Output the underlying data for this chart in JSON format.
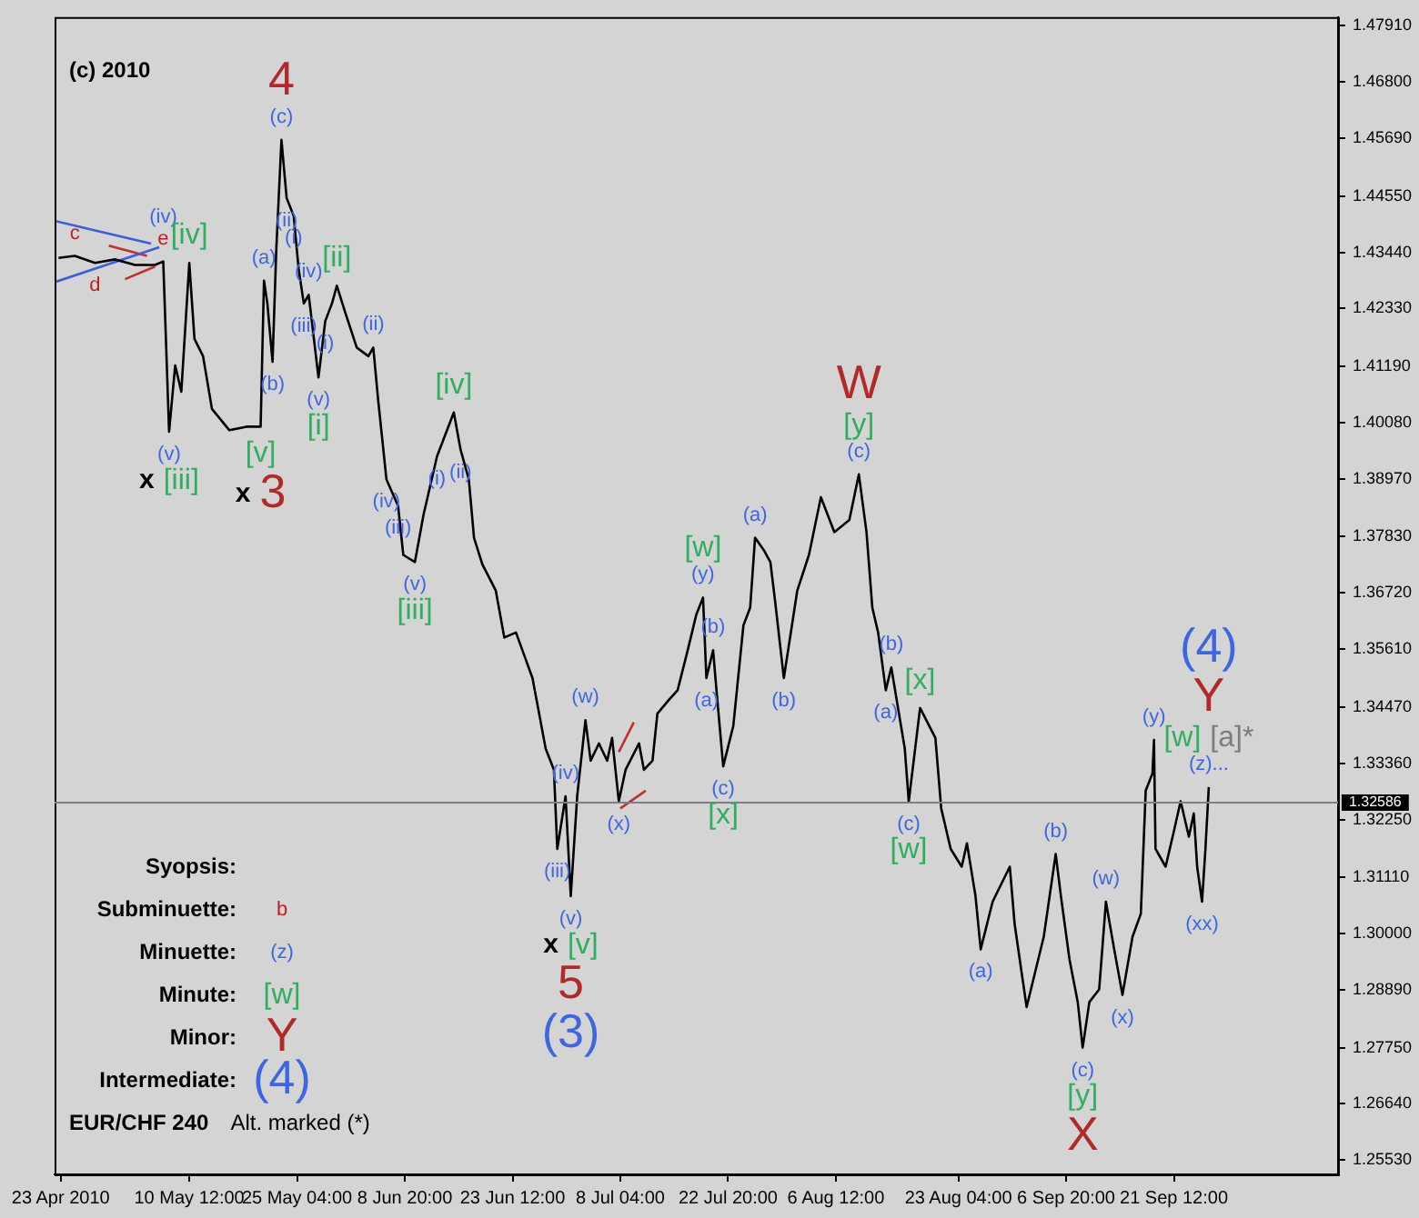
{
  "chart_data": {
    "type": "line",
    "title": "EUR/CHF 240",
    "subtitle": "(c) 2010",
    "xlim": [
      "2010-04-22T04:00",
      "2010-10-13T20:00"
    ],
    "xticks": [
      {
        "value": "2010-04-23T00:00",
        "label": "23 Apr 2010"
      },
      {
        "value": "2010-05-10T12:00",
        "label": "10 May 12:00"
      },
      {
        "value": "2010-05-25T04:00",
        "label": "25 May 04:00"
      },
      {
        "value": "2010-06-08T20:00",
        "label": "8 Jun 20:00"
      },
      {
        "value": "2010-06-23T12:00",
        "label": "23 Jun 12:00"
      },
      {
        "value": "2010-07-08T04:00",
        "label": "8 Jul 04:00"
      },
      {
        "value": "2010-07-22T20:00",
        "label": "22 Jul 20:00"
      },
      {
        "value": "2010-08-06T12:00",
        "label": "6 Aug 12:00"
      },
      {
        "value": "2010-08-23T04:00",
        "label": "23 Aug 04:00"
      },
      {
        "value": "2010-09-06T20:00",
        "label": "6 Sep 20:00"
      },
      {
        "value": "2010-09-21T12:00",
        "label": "21 Sep 12:00"
      }
    ],
    "ylim": [
      1.2525,
      1.4808
    ],
    "yticks": [
      {
        "value": 1.4791,
        "label": "1.47910"
      },
      {
        "value": 1.468,
        "label": "1.46800"
      },
      {
        "value": 1.4569,
        "label": "1.45690"
      },
      {
        "value": 1.4455,
        "label": "1.44550"
      },
      {
        "value": 1.4344,
        "label": "1.43440"
      },
      {
        "value": 1.4233,
        "label": "1.42330"
      },
      {
        "value": 1.4119,
        "label": "1.41190"
      },
      {
        "value": 1.4008,
        "label": "1.40080"
      },
      {
        "value": 1.3897,
        "label": "1.38970"
      },
      {
        "value": 1.3783,
        "label": "1.37830"
      },
      {
        "value": 1.3672,
        "label": "1.36720"
      },
      {
        "value": 1.3561,
        "label": "1.35610"
      },
      {
        "value": 1.3447,
        "label": "1.34470"
      },
      {
        "value": 1.3336,
        "label": "1.33360"
      },
      {
        "value": 1.3225,
        "label": "1.32250"
      },
      {
        "value": 1.3111,
        "label": "1.31110"
      },
      {
        "value": 1.3,
        "label": "1.30000"
      },
      {
        "value": 1.2889,
        "label": "1.28890"
      },
      {
        "value": 1.2775,
        "label": "1.27750"
      },
      {
        "value": 1.2664,
        "label": "1.26640"
      },
      {
        "value": 1.2553,
        "label": "1.25530"
      }
    ],
    "grid": false,
    "legend": false,
    "marker": "none",
    "line_style": "solid",
    "series": [
      {
        "color": "#000000",
        "x": [
          "2010-04-22T17:00",
          "2010-04-24T22:00",
          "2010-04-27T16:00",
          "2010-04-30T09:00",
          "2010-05-03T03:00",
          "2010-05-05T20:00",
          "2010-05-06T23:00",
          "2010-05-07T18:00",
          "2010-05-08T14:00",
          "2010-05-09T10:00",
          "2010-05-10T12:00",
          "2010-05-11T05:00",
          "2010-05-12T09:00",
          "2010-05-13T14:00",
          "2010-05-15T23:00",
          "2010-05-18T07:00",
          "2010-05-20T05:00",
          "2010-05-20T16:00",
          "2010-05-21T03:00",
          "2010-05-21T20:00",
          "2010-05-22T08:00",
          "2010-05-23T01:00",
          "2010-05-23T18:00",
          "2010-05-24T17:00",
          "2010-05-25T09:00",
          "2010-05-26T02:00",
          "2010-05-26T18:00",
          "2010-05-28T02:00",
          "2010-05-29T00:00",
          "2010-05-29T22:00",
          "2010-05-30T14:00",
          "2010-05-31T17:00",
          "2010-06-02T07:00",
          "2010-06-03T21:00",
          "2010-06-04T13:00",
          "2010-06-05T05:00",
          "2010-06-06T08:00",
          "2010-06-07T22:00",
          "2010-06-08T15:00",
          "2010-06-10T05:00",
          "2010-06-11T09:00",
          "2010-06-13T05:00",
          "2010-06-15T12:00",
          "2010-06-16T10:00",
          "2010-06-17T13:00",
          "2010-06-18T06:00",
          "2010-06-19T09:00",
          "2010-06-21T05:00",
          "2010-06-22T09:00",
          "2010-06-23T23:00",
          "2010-06-25T02:00",
          "2010-06-26T05:00",
          "2010-06-28T00:00",
          "2010-06-29T03:00",
          "2010-06-29T14:00",
          "2010-06-30T17:00",
          "2010-07-01T10:00",
          "2010-07-02T07:00",
          "2010-07-03T10:00",
          "2010-07-04T03:00",
          "2010-07-05T06:00",
          "2010-07-06T09:00",
          "2010-07-07T01:00",
          "2010-07-07T23:00",
          "2010-07-08T21:00",
          "2010-07-10T17:00",
          "2010-07-11T09:00",
          "2010-07-12T13:00",
          "2010-07-13T05:00",
          "2010-07-14T20:00",
          "2010-07-15T23:00",
          "2010-07-17T08:00",
          "2010-07-18T12:00",
          "2010-07-19T10:00",
          "2010-07-19T21:00",
          "2010-07-20T19:00",
          "2010-07-21T06:00",
          "2010-07-22T04:00",
          "2010-07-23T13:00",
          "2010-07-24T22:00",
          "2010-07-25T20:00",
          "2010-07-26T12:00",
          "2010-07-27T16:00",
          "2010-07-28T14:00",
          "2010-07-29T06:00",
          "2010-07-30T10:00",
          "2010-08-01T06:00",
          "2010-08-02T20:00",
          "2010-08-04T11:00",
          "2010-08-06T07:00",
          "2010-08-08T08:00",
          "2010-08-09T15:00",
          "2010-08-10T16:00",
          "2010-08-11T11:00",
          "2010-08-12T06:00",
          "2010-08-13T07:00",
          "2010-08-14T01:00",
          "2010-08-15T21:00",
          "2010-08-16T10:00",
          "2010-08-17T23:00",
          "2010-08-20T01:00",
          "2010-08-20T20:00",
          "2010-08-22T03:00",
          "2010-08-23T15:00",
          "2010-08-24T08:00",
          "2010-08-25T12:00",
          "2010-08-26T05:00",
          "2010-08-27T20:00",
          "2010-08-30T04:00",
          "2010-08-30T20:00",
          "2010-09-01T11:00",
          "2010-09-03T19:00",
          "2010-09-05T10:00",
          "2010-09-06T03:00",
          "2010-09-07T07:00",
          "2010-09-08T10:00",
          "2010-09-09T02:00",
          "2010-09-10T00:00",
          "2010-09-11T08:00",
          "2010-09-12T06:00",
          "2010-09-13T09:00",
          "2010-09-14T12:00",
          "2010-09-15T21:00",
          "2010-09-17T00:00",
          "2010-09-17T16:00",
          "2010-09-18T14:00",
          "2010-09-18T19:00",
          "2010-09-19T00:00",
          "2010-09-20T09:00",
          "2010-09-21T12:00",
          "2010-09-22T10:00",
          "2010-09-23T13:00",
          "2010-09-24T05:00",
          "2010-09-24T16:00",
          "2010-09-25T08:00",
          "2010-09-25T19:00",
          "2010-09-26T06:00"
        ],
        "values": [
          1.4333,
          1.4337,
          1.4323,
          1.433,
          1.4319,
          1.4319,
          1.4326,
          1.399,
          1.4121,
          1.4069,
          1.4323,
          1.4173,
          1.4139,
          1.4035,
          1.3993,
          1.4,
          1.4,
          1.4288,
          1.4243,
          1.4128,
          1.4347,
          1.4566,
          1.4451,
          1.4416,
          1.4312,
          1.4243,
          1.426,
          1.4097,
          1.4208,
          1.4243,
          1.4278,
          1.4226,
          1.4156,
          1.4139,
          1.4156,
          1.4052,
          1.3896,
          1.3844,
          1.3747,
          1.3733,
          1.3826,
          1.3941,
          1.4028,
          1.3955,
          1.3896,
          1.3781,
          1.3729,
          1.3677,
          1.3584,
          1.3594,
          1.3549,
          1.3504,
          1.3365,
          1.3323,
          1.3167,
          1.3271,
          1.3074,
          1.3271,
          1.3421,
          1.3341,
          1.3375,
          1.3341,
          1.3386,
          1.3261,
          1.3323,
          1.3375,
          1.3323,
          1.3341,
          1.3434,
          1.3462,
          1.348,
          1.3559,
          1.3629,
          1.3663,
          1.3504,
          1.3559,
          1.348,
          1.333,
          1.341,
          1.3608,
          1.3643,
          1.3781,
          1.3757,
          1.3733,
          1.3653,
          1.3504,
          1.3677,
          1.3747,
          1.3861,
          1.3792,
          1.3816,
          1.3906,
          1.3792,
          1.3643,
          1.3594,
          1.348,
          1.3525,
          1.3365,
          1.3261,
          1.3445,
          1.3386,
          1.3247,
          1.3167,
          1.3132,
          1.3178,
          1.3074,
          1.2969,
          1.3063,
          1.3132,
          1.3018,
          1.2855,
          1.2994,
          1.3157,
          1.3074,
          1.2949,
          1.2865,
          1.2775,
          1.2865,
          1.289,
          1.3063,
          1.2969,
          1.2879,
          1.2994,
          1.3039,
          1.3282,
          1.3316,
          1.3382,
          1.3167,
          1.3132,
          1.3202,
          1.3261,
          1.3191,
          1.3237,
          1.3132,
          1.3063,
          1.3167,
          1.3289
        ]
      },
      {
        "color": "#3a5fd9",
        "x": [
          "2010-04-22T04:00",
          "2010-05-05T07:00"
        ],
        "values": [
          1.4406,
          1.4361
        ]
      },
      {
        "color": "#3a5fd9",
        "x": [
          "2010-04-22T04:00",
          "2010-05-06T10:00"
        ],
        "values": [
          1.4285,
          1.4354
        ]
      },
      {
        "color": "#c03030",
        "x": [
          "2010-04-29T13:00",
          "2010-05-04T18:00"
        ],
        "values": [
          1.4357,
          1.4337
        ]
      },
      {
        "color": "#c03030",
        "x": [
          "2010-05-01T18:00",
          "2010-05-05T20:00"
        ],
        "values": [
          1.4291,
          1.4316
        ]
      },
      {
        "color": "#c03030",
        "x": [
          "2010-07-07T23:00",
          "2010-07-10T00:00"
        ],
        "values": [
          1.3358,
          1.3417
        ]
      },
      {
        "color": "#c03030",
        "x": [
          "2010-07-08T04:00",
          "2010-07-11T15:00"
        ],
        "values": [
          1.3247,
          1.3282
        ]
      }
    ],
    "ref_lines": [
      {
        "axis": "y",
        "value": 1.32586,
        "label": "1.32586",
        "color": "#7a8088"
      }
    ],
    "annotations": [
      {
        "text": "c",
        "x": "2010-04-24T22:00",
        "y": 1.4337
      },
      {
        "text": "d",
        "x": "2010-04-27T16:00",
        "y": 1.4323
      },
      {
        "text": "e",
        "x": "2010-05-06T23:00",
        "y": 1.4326
      },
      {
        "text": "(iv)",
        "x": "2010-05-06T23:00",
        "y": 1.4326
      },
      {
        "text": "[iv]",
        "x": "2010-05-10T12:00",
        "y": 1.4323
      },
      {
        "text": "(v)",
        "x": "2010-05-07T18:00",
        "y": 1.399
      },
      {
        "text": "x [iii]",
        "x": "2010-05-07T18:00",
        "y": 1.399
      },
      {
        "text": "[v]",
        "x": "2010-05-20T05:00",
        "y": 1.4
      },
      {
        "text": "x 3",
        "x": "2010-05-20T05:00",
        "y": 1.4
      },
      {
        "text": "(a)",
        "x": "2010-05-20T16:00",
        "y": 1.4288
      },
      {
        "text": "(b)",
        "x": "2010-05-21T20:00",
        "y": 1.4128
      },
      {
        "text": "(c)",
        "x": "2010-05-23T01:00",
        "y": 1.4566
      },
      {
        "text": "4",
        "x": "2010-05-23T01:00",
        "y": 1.4566
      },
      {
        "text": "(ii)",
        "x": "2010-05-23T18:00",
        "y": 1.4451
      },
      {
        "text": "(i)",
        "x": "2010-05-24T17:00",
        "y": 1.4416
      },
      {
        "text": "(iii)",
        "x": "2010-05-26T02:00",
        "y": 1.4243
      },
      {
        "text": "(iv)",
        "x": "2010-05-26T18:00",
        "y": 1.426
      },
      {
        "text": "[ii]",
        "x": "2010-05-30T14:00",
        "y": 1.4278
      },
      {
        "text": "(v)",
        "x": "2010-05-28T02:00",
        "y": 1.4097
      },
      {
        "text": "[i]",
        "x": "2010-05-28T02:00",
        "y": 1.4097
      },
      {
        "text": "(i)",
        "x": "2010-05-29T00:00",
        "y": 1.4208
      },
      {
        "text": "(ii)",
        "x": "2010-06-04T13:00",
        "y": 1.4156
      },
      {
        "text": "(iii)",
        "x": "2010-06-07T22:00",
        "y": 1.3844
      },
      {
        "text": "(iv)",
        "x": "2010-06-06T08:00",
        "y": 1.3896
      },
      {
        "text": "(v)",
        "x": "2010-06-10T05:00",
        "y": 1.3733
      },
      {
        "text": "[iii]",
        "x": "2010-06-10T05:00",
        "y": 1.3733
      },
      {
        "text": "(i)",
        "x": "2010-06-13T05:00",
        "y": 1.3941
      },
      {
        "text": "[iv]",
        "x": "2010-06-15T12:00",
        "y": 1.4028
      },
      {
        "text": "(ii)",
        "x": "2010-06-16T10:00",
        "y": 1.3955
      },
      {
        "text": "(iii)",
        "x": "2010-06-29T14:00",
        "y": 1.3167
      },
      {
        "text": "(iv)",
        "x": "2010-06-30T17:00",
        "y": 1.3271
      },
      {
        "text": "(v)",
        "x": "2010-07-01T10:00",
        "y": 1.3074
      },
      {
        "text": "x [v]",
        "x": "2010-07-01T10:00",
        "y": 1.3074
      },
      {
        "text": "5",
        "x": "2010-07-01T10:00",
        "y": 1.3074
      },
      {
        "text": "(3)",
        "x": "2010-07-01T10:00",
        "y": 1.3074
      },
      {
        "text": "(w)",
        "x": "2010-07-03T10:00",
        "y": 1.3421
      },
      {
        "text": "(x)",
        "x": "2010-07-07T23:00",
        "y": 1.3261
      },
      {
        "text": "(y)",
        "x": "2010-07-19T10:00",
        "y": 1.3663
      },
      {
        "text": "[w]",
        "x": "2010-07-19T10:00",
        "y": 1.3663
      },
      {
        "text": "(a)",
        "x": "2010-07-19T21:00",
        "y": 1.3504
      },
      {
        "text": "(b)",
        "x": "2010-07-20T19:00",
        "y": 1.3559
      },
      {
        "text": "(c)",
        "x": "2010-07-22T04:00",
        "y": 1.333
      },
      {
        "text": "[x]",
        "x": "2010-07-22T04:00",
        "y": 1.333
      },
      {
        "text": "(a)",
        "x": "2010-07-26T12:00",
        "y": 1.3781
      },
      {
        "text": "(b)",
        "x": "2010-07-30T10:00",
        "y": 1.3504
      },
      {
        "text": "(c)",
        "x": "2010-08-09T15:00",
        "y": 1.3906
      },
      {
        "text": "[y]",
        "x": "2010-08-09T15:00",
        "y": 1.3906
      },
      {
        "text": "W",
        "x": "2010-08-09T15:00",
        "y": 1.3906
      },
      {
        "text": "(a)",
        "x": "2010-08-13T07:00",
        "y": 1.348
      },
      {
        "text": "(b)",
        "x": "2010-08-14T01:00",
        "y": 1.3525
      },
      {
        "text": "(c)",
        "x": "2010-08-16T10:00",
        "y": 1.3261
      },
      {
        "text": "[w]",
        "x": "2010-08-16T10:00",
        "y": 1.3261
      },
      {
        "text": "[x]",
        "x": "2010-08-17T23:00",
        "y": 1.3445
      },
      {
        "text": "(a)",
        "x": "2010-08-26T05:00",
        "y": 1.2969
      },
      {
        "text": "(b)",
        "x": "2010-09-05T10:00",
        "y": 1.3157
      },
      {
        "text": "(c)",
        "x": "2010-09-09T02:00",
        "y": 1.2775
      },
      {
        "text": "[y]",
        "x": "2010-09-09T02:00",
        "y": 1.2775
      },
      {
        "text": "X",
        "x": "2010-09-09T02:00",
        "y": 1.2775
      },
      {
        "text": "(w)",
        "x": "2010-09-12T06:00",
        "y": 1.3063
      },
      {
        "text": "(x)",
        "x": "2010-09-14T12:00",
        "y": 1.2879
      },
      {
        "text": "(y)",
        "x": "2010-09-18T19:00",
        "y": 1.3382
      },
      {
        "text": "(xx)",
        "x": "2010-09-25T08:00",
        "y": 1.3063
      },
      {
        "text": "(z)...",
        "x": "2010-09-26T06:00",
        "y": 1.3289
      },
      {
        "text": "[w] [a]*",
        "x": "2010-09-26T06:00",
        "y": 1.3289
      },
      {
        "text": "Y",
        "x": "2010-09-26T06:00",
        "y": 1.3289
      },
      {
        "text": "(4)",
        "x": "2010-09-26T06:00",
        "y": 1.3289
      },
      "Syopsis:",
      "Subminuette: b",
      "Minuette: (z)",
      "Minute: [w]",
      "Minor: Y",
      "Intermediate: (4)",
      "Alt. marked (*)"
    ]
  }
}
